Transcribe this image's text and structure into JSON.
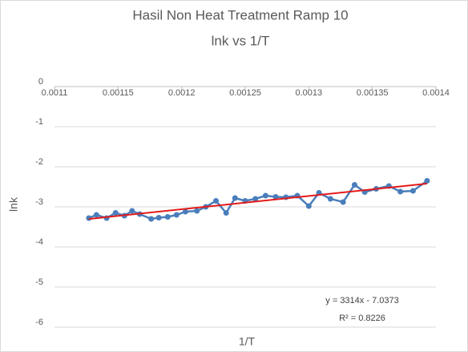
{
  "chart_data": {
    "type": "scatter",
    "title": "Hasil Non Heat Treatment Ramp 10",
    "subtitle": "lnk vs 1/T",
    "x_label": "1/T",
    "y_label": "lnk",
    "xlim": [
      0.0011,
      0.0014
    ],
    "xticks": [
      0.0011,
      0.00115,
      0.0012,
      0.00125,
      0.0013,
      0.00135,
      0.0014
    ],
    "ylim": [
      -6,
      0
    ],
    "yticks": [
      0,
      -1,
      -2,
      -3,
      -4,
      -5,
      -6
    ],
    "grid": true,
    "series": [
      {
        "color": "#4a7ebb",
        "x": [
          0.001127,
          0.001133,
          0.001141,
          0.001148,
          0.001155,
          0.001161,
          0.001167,
          0.001176,
          0.001182,
          0.001189,
          0.001196,
          0.001203,
          0.001212,
          0.001219,
          0.001227,
          0.001235,
          0.001242,
          0.00125,
          0.001258,
          0.001266,
          0.001274,
          0.001282,
          0.001291,
          0.0013,
          0.001308,
          0.001317,
          0.001327,
          0.001336,
          0.001344,
          0.001353,
          0.001363,
          0.001372,
          0.001382,
          0.001393
        ],
        "values": [
          -3.28,
          -3.2,
          -3.28,
          -3.15,
          -3.22,
          -3.1,
          -3.18,
          -3.3,
          -3.27,
          -3.25,
          -3.2,
          -3.12,
          -3.1,
          -3.0,
          -2.85,
          -3.15,
          -2.78,
          -2.85,
          -2.8,
          -2.72,
          -2.75,
          -2.76,
          -2.72,
          -2.98,
          -2.65,
          -2.8,
          -2.88,
          -2.45,
          -2.63,
          -2.55,
          -2.48,
          -2.62,
          -2.6,
          -2.35
        ]
      }
    ],
    "trendline": {
      "color": "#e41a1a",
      "x": [
        0.001127,
        0.001393
      ],
      "values": [
        -3.302,
        -2.421
      ]
    },
    "annotations": [
      "y = 3314x - 7.0373",
      "R² = 0.8226"
    ]
  }
}
